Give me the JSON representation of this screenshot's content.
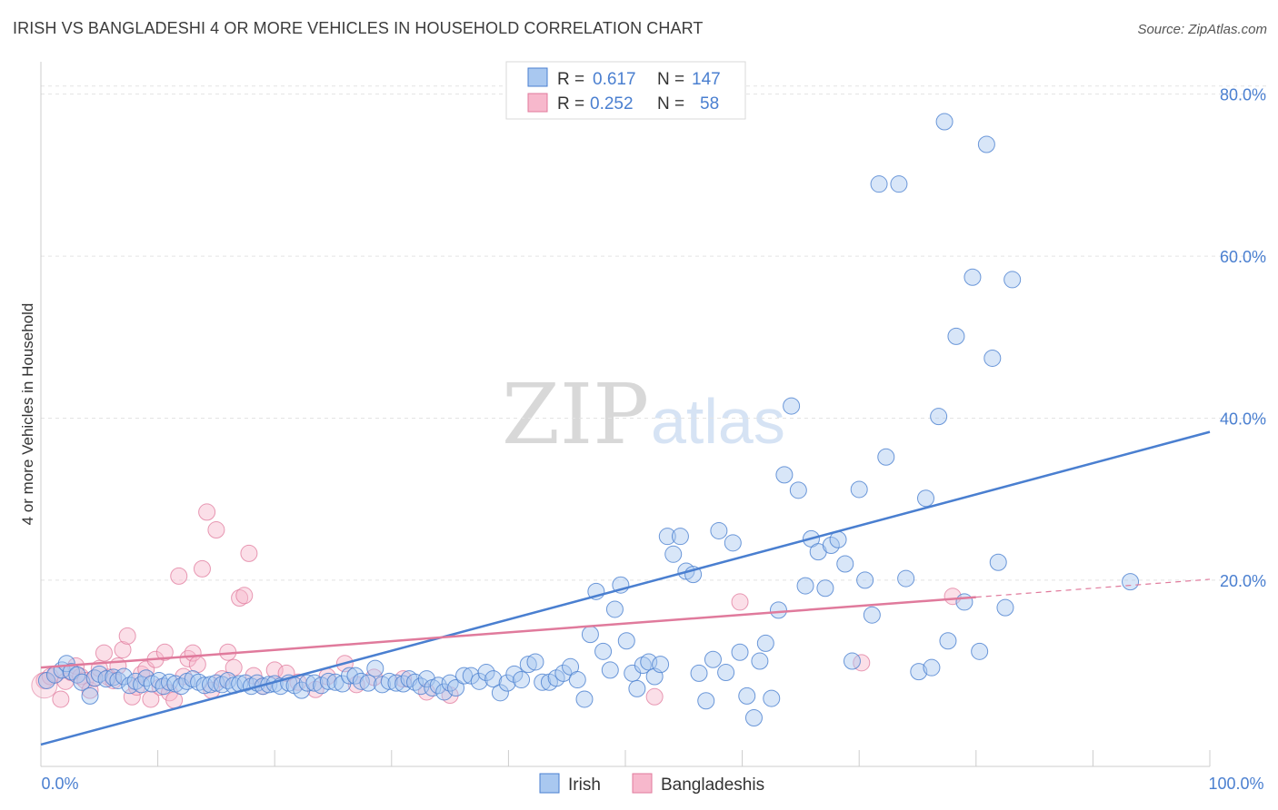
{
  "title": "IRISH VS BANGLADESHI 4 OR MORE VEHICLES IN HOUSEHOLD CORRELATION CHART",
  "source": "Source: ZipAtlas.com",
  "watermark": {
    "zip": "ZIP",
    "atlas": "atlas"
  },
  "legend": {
    "rows": [
      {
        "r_label": "R =",
        "r_value": "0.617",
        "n_label": "N =",
        "n_value": "147",
        "color": "#a9c8f0",
        "edge": "#4a7fd0"
      },
      {
        "r_label": "R =",
        "r_value": "0.252",
        "n_label": "N =",
        "n_value": "58",
        "color": "#f7b8cc",
        "edge": "#e07a9c"
      }
    ]
  },
  "bottom_legend": {
    "irish": "Irish",
    "bangladeshis": "Bangladeshis"
  },
  "chart_data": {
    "type": "scatter",
    "title": "IRISH VS BANGLADESHI 4 OR MORE VEHICLES IN HOUSEHOLD CORRELATION CHART",
    "xlabel": "",
    "ylabel": "4 or more Vehicles in Household",
    "xlim": [
      0,
      100
    ],
    "ylim": [
      -3,
      84
    ],
    "x_tick_labels": [
      "0.0%",
      "100.0%"
    ],
    "y_ticks": [
      20,
      40,
      60,
      80
    ],
    "y_tick_labels": [
      "20.0%",
      "40.0%",
      "60.0%",
      "80.0%"
    ],
    "grid": true,
    "legend_position": "top-center",
    "colors": {
      "irish": "#4a7fd0",
      "irish_fill": "#a9c8f0",
      "bangladeshis": "#e07a9c",
      "bangladeshis_fill": "#f7b8cc"
    },
    "series": [
      {
        "name": "Irish",
        "trend": {
          "x0": 0,
          "y0": -0.3,
          "x1": 100,
          "y1": 38.3
        },
        "points": [
          [
            0.5,
            7.6
          ],
          [
            1.2,
            8.3
          ],
          [
            1.8,
            8.9
          ],
          [
            2.2,
            9.7
          ],
          [
            2.6,
            8.7
          ],
          [
            3.1,
            8.3
          ],
          [
            3.5,
            7.4
          ],
          [
            4.2,
            5.7
          ],
          [
            4.6,
            7.9
          ],
          [
            5.0,
            8.4
          ],
          [
            5.6,
            7.8
          ],
          [
            6.2,
            8.0
          ],
          [
            6.6,
            7.6
          ],
          [
            7.1,
            8.1
          ],
          [
            7.6,
            7.0
          ],
          [
            8.1,
            7.5
          ],
          [
            8.6,
            7.1
          ],
          [
            9.0,
            7.9
          ],
          [
            9.5,
            7.2
          ],
          [
            10.1,
            7.6
          ],
          [
            10.5,
            6.9
          ],
          [
            11.0,
            7.4
          ],
          [
            11.5,
            7.2
          ],
          [
            12.0,
            6.9
          ],
          [
            12.5,
            7.5
          ],
          [
            13.0,
            7.8
          ],
          [
            13.5,
            7.4
          ],
          [
            14.0,
            7.0
          ],
          [
            14.5,
            7.1
          ],
          [
            15.0,
            7.3
          ],
          [
            15.5,
            7.1
          ],
          [
            16.0,
            7.6
          ],
          [
            16.5,
            7.0
          ],
          [
            17.0,
            7.2
          ],
          [
            17.5,
            7.3
          ],
          [
            18.0,
            6.9
          ],
          [
            18.5,
            7.3
          ],
          [
            19.0,
            6.9
          ],
          [
            19.5,
            7.1
          ],
          [
            20.0,
            7.2
          ],
          [
            20.5,
            6.9
          ],
          [
            21.2,
            7.3
          ],
          [
            21.7,
            7.0
          ],
          [
            22.3,
            6.4
          ],
          [
            22.8,
            7.3
          ],
          [
            23.4,
            7.3
          ],
          [
            24.0,
            7.0
          ],
          [
            24.6,
            7.5
          ],
          [
            25.2,
            7.4
          ],
          [
            25.8,
            7.2
          ],
          [
            26.4,
            8.2
          ],
          [
            26.9,
            8.2
          ],
          [
            27.4,
            7.5
          ],
          [
            28.0,
            7.3
          ],
          [
            28.6,
            9.1
          ],
          [
            29.2,
            7.1
          ],
          [
            29.8,
            7.5
          ],
          [
            30.4,
            7.3
          ],
          [
            31.0,
            7.2
          ],
          [
            31.5,
            7.8
          ],
          [
            32.0,
            7.4
          ],
          [
            32.5,
            6.9
          ],
          [
            33.0,
            7.8
          ],
          [
            33.5,
            6.7
          ],
          [
            34.0,
            7.0
          ],
          [
            34.5,
            6.2
          ],
          [
            35.0,
            7.3
          ],
          [
            35.5,
            6.7
          ],
          [
            36.2,
            8.2
          ],
          [
            36.8,
            8.2
          ],
          [
            37.5,
            7.5
          ],
          [
            38.1,
            8.6
          ],
          [
            38.7,
            7.8
          ],
          [
            39.3,
            6.1
          ],
          [
            39.9,
            7.3
          ],
          [
            40.5,
            8.4
          ],
          [
            41.1,
            7.7
          ],
          [
            41.7,
            9.6
          ],
          [
            42.3,
            9.9
          ],
          [
            42.9,
            7.4
          ],
          [
            43.5,
            7.4
          ],
          [
            44.1,
            7.9
          ],
          [
            44.7,
            8.5
          ],
          [
            45.3,
            9.3
          ],
          [
            45.9,
            7.7
          ],
          [
            46.5,
            5.3
          ],
          [
            47.0,
            13.3
          ],
          [
            47.5,
            18.6
          ],
          [
            48.1,
            11.2
          ],
          [
            48.7,
            8.9
          ],
          [
            49.1,
            16.4
          ],
          [
            49.6,
            19.4
          ],
          [
            50.1,
            12.5
          ],
          [
            50.6,
            8.5
          ],
          [
            51.0,
            6.6
          ],
          [
            51.5,
            9.5
          ],
          [
            52.0,
            9.9
          ],
          [
            52.5,
            8.1
          ],
          [
            53.0,
            9.6
          ],
          [
            53.6,
            25.4
          ],
          [
            54.1,
            23.2
          ],
          [
            54.7,
            25.4
          ],
          [
            55.2,
            21.1
          ],
          [
            55.8,
            20.7
          ],
          [
            56.3,
            8.5
          ],
          [
            56.9,
            5.1
          ],
          [
            57.5,
            10.2
          ],
          [
            58.0,
            26.1
          ],
          [
            58.6,
            8.6
          ],
          [
            59.2,
            24.6
          ],
          [
            59.8,
            11.1
          ],
          [
            60.4,
            5.7
          ],
          [
            61.0,
            3.0
          ],
          [
            61.5,
            10.0
          ],
          [
            62.0,
            12.2
          ],
          [
            62.5,
            5.4
          ],
          [
            63.1,
            16.3
          ],
          [
            63.6,
            33.0
          ],
          [
            64.2,
            41.5
          ],
          [
            64.8,
            31.1
          ],
          [
            65.4,
            19.3
          ],
          [
            65.9,
            25.1
          ],
          [
            66.5,
            23.5
          ],
          [
            67.1,
            19.0
          ],
          [
            67.6,
            24.3
          ],
          [
            68.2,
            25.0
          ],
          [
            68.8,
            22.0
          ],
          [
            69.4,
            10.0
          ],
          [
            70.0,
            31.2
          ],
          [
            70.5,
            20.0
          ],
          [
            71.1,
            15.7
          ],
          [
            71.7,
            68.9
          ],
          [
            72.3,
            35.2
          ],
          [
            73.4,
            68.9
          ],
          [
            74.0,
            20.2
          ],
          [
            75.1,
            8.7
          ],
          [
            75.7,
            30.1
          ],
          [
            76.2,
            9.2
          ],
          [
            76.8,
            40.2
          ],
          [
            77.3,
            76.6
          ],
          [
            77.6,
            12.5
          ],
          [
            78.3,
            50.1
          ],
          [
            79.0,
            17.3
          ],
          [
            79.7,
            57.4
          ],
          [
            80.3,
            11.2
          ],
          [
            80.9,
            73.8
          ],
          [
            81.4,
            47.4
          ],
          [
            81.9,
            22.2
          ],
          [
            82.5,
            16.6
          ],
          [
            83.1,
            57.1
          ],
          [
            93.2,
            19.8
          ]
        ]
      },
      {
        "name": "Bangladeshis",
        "trend": {
          "x0": 0,
          "y0": 9.2,
          "x1": 80,
          "y1": 17.9
        },
        "trend_dashed": {
          "x0": 80,
          "y0": 17.9,
          "x1": 100,
          "y1": 20.1
        },
        "points": [
          [
            0.3,
            7.6
          ],
          [
            0.8,
            8.1
          ],
          [
            1.3,
            8.4
          ],
          [
            1.7,
            5.3
          ],
          [
            2.1,
            7.5
          ],
          [
            2.6,
            8.6
          ],
          [
            3.0,
            9.4
          ],
          [
            3.4,
            8.1
          ],
          [
            3.8,
            7.6
          ],
          [
            4.2,
            6.4
          ],
          [
            4.6,
            7.9
          ],
          [
            5.0,
            9.1
          ],
          [
            5.4,
            11.0
          ],
          [
            5.8,
            8.0
          ],
          [
            6.2,
            7.6
          ],
          [
            6.6,
            9.4
          ],
          [
            7.0,
            11.4
          ],
          [
            7.4,
            13.1
          ],
          [
            7.8,
            5.6
          ],
          [
            8.2,
            6.8
          ],
          [
            8.6,
            8.4
          ],
          [
            9.0,
            9.0
          ],
          [
            9.4,
            5.3
          ],
          [
            9.8,
            10.2
          ],
          [
            10.2,
            6.8
          ],
          [
            10.6,
            11.1
          ],
          [
            11.0,
            6.1
          ],
          [
            11.4,
            5.2
          ],
          [
            11.8,
            20.5
          ],
          [
            12.2,
            8.1
          ],
          [
            12.6,
            10.3
          ],
          [
            13.0,
            11.0
          ],
          [
            13.4,
            9.6
          ],
          [
            13.8,
            21.4
          ],
          [
            14.2,
            28.4
          ],
          [
            14.6,
            6.4
          ],
          [
            15.0,
            26.2
          ],
          [
            15.5,
            7.8
          ],
          [
            16.0,
            11.1
          ],
          [
            16.5,
            9.2
          ],
          [
            17.0,
            17.8
          ],
          [
            17.4,
            18.1
          ],
          [
            17.8,
            23.3
          ],
          [
            18.2,
            8.2
          ],
          [
            19.0,
            6.9
          ],
          [
            20.0,
            8.9
          ],
          [
            21.0,
            8.5
          ],
          [
            22.0,
            7.4
          ],
          [
            23.5,
            6.5
          ],
          [
            24.5,
            8.1
          ],
          [
            26.0,
            9.7
          ],
          [
            27.0,
            7.1
          ],
          [
            28.5,
            8.0
          ],
          [
            31.0,
            7.8
          ],
          [
            33.0,
            6.2
          ],
          [
            35.0,
            5.8
          ],
          [
            52.5,
            5.6
          ],
          [
            59.8,
            17.3
          ],
          [
            70.2,
            9.8
          ],
          [
            78.0,
            18.0
          ]
        ]
      }
    ]
  }
}
